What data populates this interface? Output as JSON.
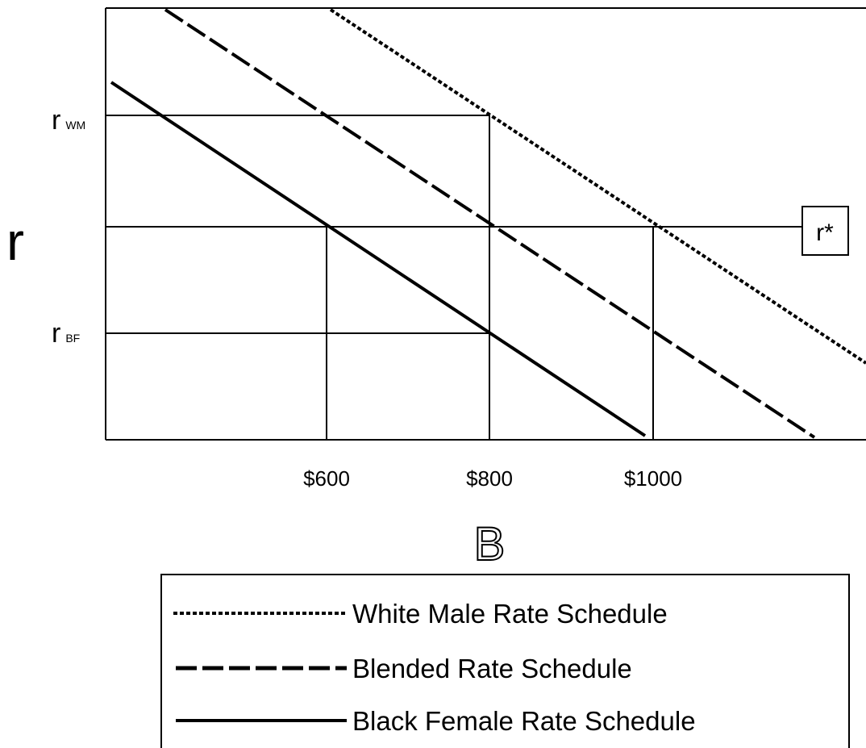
{
  "axes": {
    "y_label": "r",
    "x_label": "B",
    "y_ticks": [
      {
        "main": "r",
        "sub": "WM"
      },
      {
        "main": "r",
        "sub": "BF"
      }
    ],
    "x_ticks": [
      "$600",
      "$800",
      "$1000"
    ]
  },
  "annotation": "r*",
  "legend": [
    "White Male Rate Schedule",
    "Blended Rate Schedule",
    "Black Female Rate Schedule"
  ]
}
